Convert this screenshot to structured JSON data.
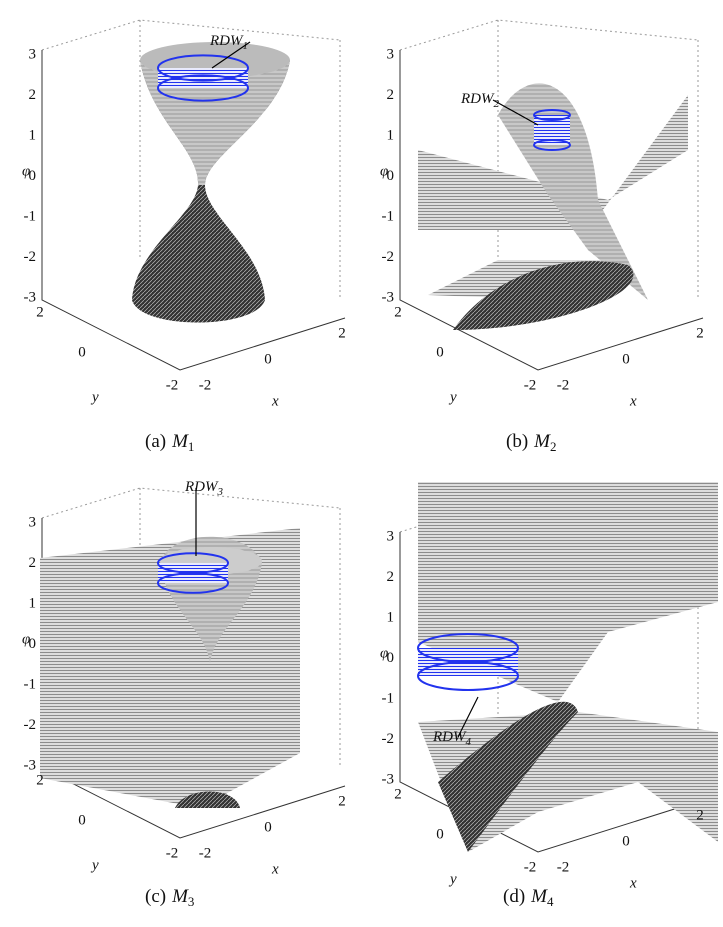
{
  "panels": [
    {
      "caption": {
        "label": "(a)",
        "symbol": "M",
        "subscript": "1"
      },
      "annotation": {
        "name": "RDW",
        "subscript": "1"
      },
      "axes": {
        "z_label": "φ",
        "x_label": "x",
        "y_label": "y",
        "z_ticks": [
          3,
          2,
          1,
          0,
          -1,
          -2,
          -3
        ],
        "x_ticks": [
          -2,
          0,
          2
        ],
        "y_ticks": [
          2,
          0,
          -2
        ]
      }
    },
    {
      "caption": {
        "label": "(b)",
        "symbol": "M",
        "subscript": "2"
      },
      "annotation": {
        "name": "RDW",
        "subscript": "2"
      },
      "axes": {
        "z_label": "φ",
        "x_label": "x",
        "y_label": "y",
        "z_ticks": [
          3,
          2,
          1,
          0,
          -1,
          -2,
          -3
        ],
        "x_ticks": [
          -2,
          0,
          2
        ],
        "y_ticks": [
          2,
          0,
          -2
        ]
      }
    },
    {
      "caption": {
        "label": "(c)",
        "symbol": "M",
        "subscript": "3"
      },
      "annotation": {
        "name": "RDW",
        "subscript": "3"
      },
      "axes": {
        "z_label": "φ",
        "x_label": "x",
        "y_label": "y",
        "z_ticks": [
          3,
          2,
          1,
          0,
          -1,
          -2,
          -3
        ],
        "x_ticks": [
          -2,
          0,
          2
        ],
        "y_ticks": [
          2,
          0,
          -2
        ]
      }
    },
    {
      "caption": {
        "label": "(d)",
        "symbol": "M",
        "subscript": "4"
      },
      "annotation": {
        "name": "RDW",
        "subscript": "4"
      },
      "axes": {
        "z_label": "φ",
        "x_label": "x",
        "y_label": "y",
        "z_ticks": [
          3,
          2,
          1,
          0,
          -1,
          -2,
          -3
        ],
        "x_ticks": [
          -2,
          0,
          2
        ],
        "y_ticks": [
          2,
          0,
          -2
        ]
      }
    }
  ]
}
